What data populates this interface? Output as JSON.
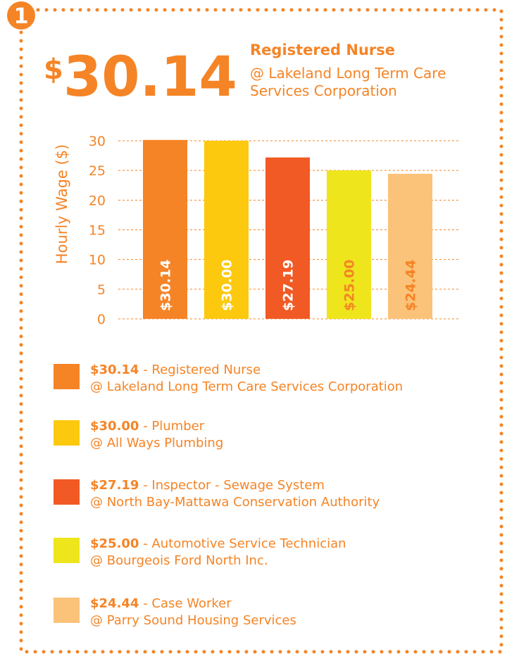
{
  "badge": "1",
  "headline": {
    "currency": "$",
    "amount": "30.14",
    "title": "Registered Nurse",
    "subtitle": "@ Lakeland Long Term Care Services Corporation"
  },
  "chart_data": {
    "type": "bar",
    "y_label": "Hourly Wage ($)",
    "categories": [
      "Registered Nurse",
      "Plumber",
      "Inspector - Sewage System",
      "Automotive Service Technician",
      "Case Worker"
    ],
    "employers": [
      "@ Lakeland Long Term Care Services Corporation",
      "@ All Ways Plumbing",
      "@ North Bay-Mattawa Conservation Authority",
      "@ Bourgeois Ford North Inc.",
      "@ Parry Sound Housing Services"
    ],
    "values": [
      30.14,
      30.0,
      27.19,
      25.0,
      24.44
    ],
    "value_labels": [
      "$30.14",
      "$30.00",
      "$27.19",
      "$25.00",
      "$24.44"
    ],
    "colors": [
      "#f58426",
      "#fcc90f",
      "#f15a24",
      "#eee51c",
      "#fbc27a"
    ],
    "label_colors": [
      "#ffffff",
      "#ffffff",
      "#ffffff",
      "#f58426",
      "#f58426"
    ],
    "legend_separator": " - ",
    "ylim": [
      0,
      30
    ],
    "yticks": [
      0,
      5,
      10,
      15,
      20,
      25,
      30
    ],
    "grid": true
  }
}
